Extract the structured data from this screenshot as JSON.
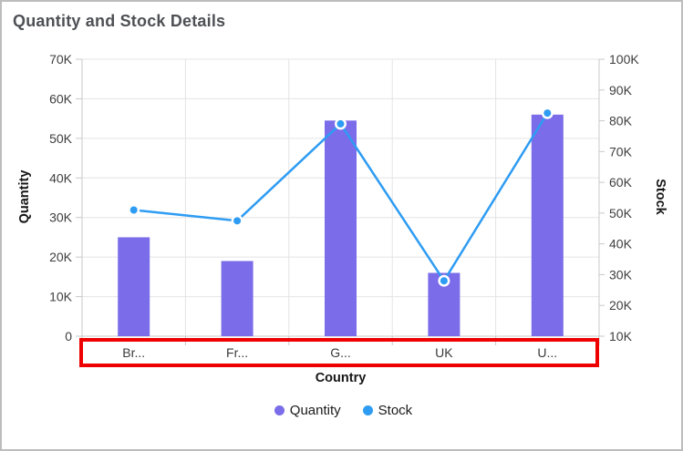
{
  "window": {
    "background": "#ffffff",
    "border_color": "#bdbdbd"
  },
  "chart_data": {
    "type": "combo-bar-line",
    "title": "Quantity and Stock Details",
    "categories": [
      "Br...",
      "Fr...",
      "G...",
      "UK",
      "U..."
    ],
    "series": [
      {
        "name": "Quantity",
        "type": "bar",
        "axis": "left",
        "color": "#7b6cea",
        "values": [
          25000,
          19000,
          54500,
          16000,
          56000
        ]
      },
      {
        "name": "Stock",
        "type": "line",
        "axis": "right",
        "color": "#2e9cf3",
        "values": [
          51000,
          47500,
          79000,
          28000,
          82500
        ]
      }
    ],
    "x_axis": {
      "title": "Country"
    },
    "left_axis": {
      "title": "Quantity",
      "min": 0,
      "max": 70000,
      "step": 10000,
      "tick_labels": [
        "0",
        "10K",
        "20K",
        "30K",
        "40K",
        "50K",
        "60K",
        "70K"
      ]
    },
    "right_axis": {
      "title": "Stock",
      "min": 10000,
      "max": 100000,
      "step": 10000,
      "tick_labels": [
        "10K",
        "20K",
        "30K",
        "40K",
        "50K",
        "60K",
        "70K",
        "80K",
        "90K",
        "100K"
      ]
    },
    "legend": {
      "position": "bottom",
      "items": [
        {
          "label": "Quantity",
          "color": "#7b6cea"
        },
        {
          "label": "Stock",
          "color": "#2e9cf3"
        }
      ]
    },
    "grid": {
      "horizontal": true,
      "vertical": true,
      "grid_color": "#e4e4e4",
      "axis_line_color": "#c9c9c9"
    },
    "annotation": {
      "type": "highlight-rectangle",
      "target": "x-axis-labels",
      "color": "#ee0000"
    }
  }
}
